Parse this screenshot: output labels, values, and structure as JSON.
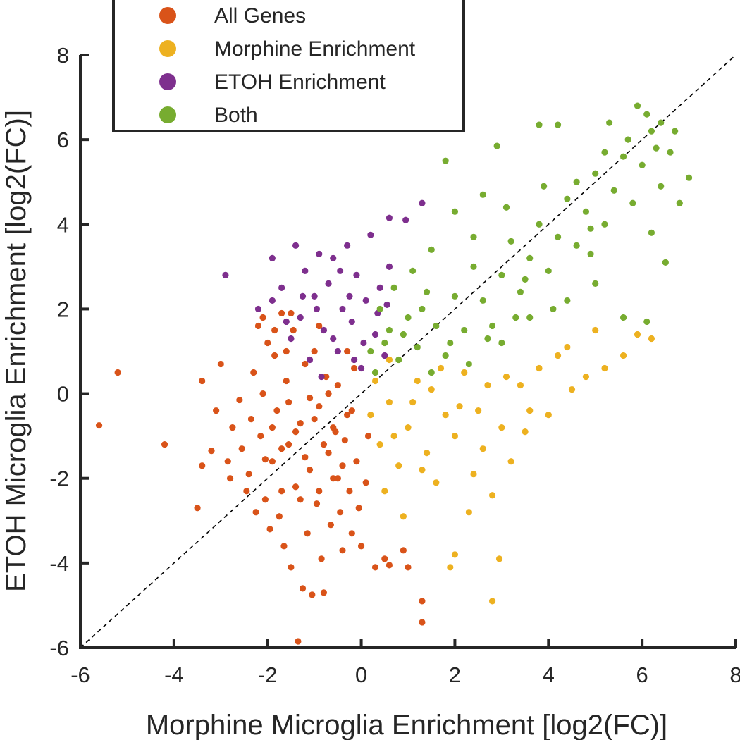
{
  "chart_data": {
    "type": "scatter",
    "xlabel": "Morphine Microglia Enrichment [log2(FC)]",
    "ylabel": "ETOH Microglia Enrichment [log2(FC)]",
    "xlim": [
      -6,
      8
    ],
    "ylim": [
      -6,
      8
    ],
    "xticks": [
      -6,
      -4,
      -2,
      0,
      2,
      4,
      6,
      8
    ],
    "yticks": [
      -6,
      -4,
      -2,
      0,
      2,
      4,
      6,
      8
    ],
    "x_tick_labels": [
      "-6",
      "-4",
      "-2",
      "0",
      "2",
      "4",
      "6",
      "8"
    ],
    "y_tick_labels": [
      "-6",
      "-4",
      "-2",
      "0",
      "2",
      "4",
      "6",
      "8"
    ],
    "grid": false,
    "legend_position": "top-left, outside axes (above)",
    "reference_line": {
      "type": "diagonal y = x",
      "style": "dashed",
      "color": "#000000"
    },
    "series": [
      {
        "name": "All Genes",
        "color": "#D95319",
        "values_description": "dense cloud centered near (-1, -1); x roughly -2 to 0, y roughly -3 to 2",
        "points": [
          [
            -5.6,
            -0.75
          ],
          [
            -5.2,
            0.5
          ],
          [
            -4.2,
            -1.2
          ],
          [
            -3.5,
            -2.7
          ],
          [
            -3.4,
            -1.7
          ],
          [
            -3.4,
            0.3
          ],
          [
            -3.2,
            -1.35
          ],
          [
            -3.1,
            -0.4
          ],
          [
            -3.0,
            0.7
          ],
          [
            -2.85,
            -1.6
          ],
          [
            -2.8,
            -2.0
          ],
          [
            -2.75,
            -0.8
          ],
          [
            -2.6,
            -0.15
          ],
          [
            -2.55,
            -1.3
          ],
          [
            -2.45,
            -2.3
          ],
          [
            -2.4,
            -1.9
          ],
          [
            -2.35,
            -0.6
          ],
          [
            -2.3,
            0.5
          ],
          [
            -2.25,
            -2.8
          ],
          [
            -2.2,
            1.6
          ],
          [
            -2.15,
            -1.0
          ],
          [
            -2.1,
            0.0
          ],
          [
            -2.05,
            -2.5
          ],
          [
            -2.0,
            1.2
          ],
          [
            -1.95,
            -3.2
          ],
          [
            -1.9,
            -1.6
          ],
          [
            -1.85,
            0.9
          ],
          [
            -1.8,
            -0.4
          ],
          [
            -1.75,
            -2.9
          ],
          [
            -1.7,
            1.9
          ],
          [
            -1.65,
            -3.6
          ],
          [
            -1.6,
            0.3
          ],
          [
            -1.55,
            -1.2
          ],
          [
            -1.5,
            -4.1
          ],
          [
            -1.45,
            1.5
          ],
          [
            -1.4,
            -2.2
          ],
          [
            -1.35,
            -5.85
          ],
          [
            -1.3,
            -0.7
          ],
          [
            -1.25,
            -4.6
          ],
          [
            -1.2,
            0.7
          ],
          [
            -1.15,
            -3.3
          ],
          [
            -1.1,
            -1.8
          ],
          [
            -1.05,
            -4.75
          ],
          [
            -1.0,
            1.0
          ],
          [
            -0.95,
            -2.6
          ],
          [
            -0.9,
            -0.3
          ],
          [
            -0.85,
            -3.9
          ],
          [
            -0.8,
            -4.7
          ],
          [
            -0.75,
            0.4
          ],
          [
            -0.7,
            -1.4
          ],
          [
            -0.65,
            -3.1
          ],
          [
            -0.6,
            -2.0
          ],
          [
            -0.55,
            -0.9
          ],
          [
            -0.5,
            0.2
          ],
          [
            -0.45,
            -2.8
          ],
          [
            -0.4,
            -3.7
          ],
          [
            -0.35,
            -1.1
          ],
          [
            -0.3,
            -0.5
          ],
          [
            -0.25,
            -2.3
          ],
          [
            -0.2,
            -3.3
          ],
          [
            -0.15,
            0.6
          ],
          [
            -0.1,
            -1.6
          ],
          [
            -0.05,
            -2.7
          ],
          [
            0.0,
            -3.6
          ],
          [
            0.1,
            -2.1
          ],
          [
            0.15,
            -1.0
          ],
          [
            0.3,
            -4.1
          ],
          [
            0.5,
            -3.9
          ],
          [
            0.6,
            -4.05
          ],
          [
            0.9,
            -3.7
          ],
          [
            1.0,
            -4.1
          ],
          [
            1.3,
            -4.9
          ],
          [
            1.3,
            -5.4
          ],
          [
            -2.05,
            -1.55
          ],
          [
            -1.7,
            -1.3
          ],
          [
            -1.4,
            -0.9
          ],
          [
            -1.2,
            -1.5
          ],
          [
            -1.0,
            -0.6
          ],
          [
            -0.8,
            -1.2
          ],
          [
            -0.6,
            -0.8
          ],
          [
            -0.4,
            -1.7
          ],
          [
            -0.2,
            -0.4
          ],
          [
            -1.55,
            -0.2
          ],
          [
            -1.3,
            -2.5
          ],
          [
            -0.9,
            -2.3
          ],
          [
            -0.5,
            -2.0
          ],
          [
            -1.9,
            -0.8
          ],
          [
            -1.7,
            -2.3
          ],
          [
            -1.1,
            -0.1
          ],
          [
            -0.7,
            0.0
          ],
          [
            -0.3,
            1.0
          ],
          [
            -1.6,
            1.0
          ],
          [
            -1.85,
            1.5
          ],
          [
            -2.1,
            1.8
          ],
          [
            -1.5,
            1.9
          ],
          [
            -0.9,
            1.6
          ]
        ]
      },
      {
        "name": "Morphine Enrichment",
        "color": "#EDB120",
        "values_description": "x > 0, y < ~1.5; fan extending to the lower right",
        "points": [
          [
            0.2,
            -0.5
          ],
          [
            0.4,
            -1.2
          ],
          [
            0.6,
            -0.2
          ],
          [
            0.8,
            -1.7
          ],
          [
            1.0,
            -0.8
          ],
          [
            1.2,
            0.3
          ],
          [
            1.4,
            -1.4
          ],
          [
            1.6,
            -2.1
          ],
          [
            1.8,
            -0.5
          ],
          [
            2.0,
            -1.0
          ],
          [
            2.2,
            0.5
          ],
          [
            2.4,
            -1.9
          ],
          [
            2.6,
            -1.3
          ],
          [
            2.8,
            -2.4
          ],
          [
            3.0,
            -0.8
          ],
          [
            3.2,
            -1.6
          ],
          [
            3.4,
            0.2
          ],
          [
            3.6,
            -0.4
          ],
          [
            3.8,
            0.6
          ],
          [
            4.0,
            -0.5
          ],
          [
            4.2,
            0.9
          ],
          [
            4.5,
            0.1
          ],
          [
            4.8,
            0.4
          ],
          [
            5.2,
            0.6
          ],
          [
            5.6,
            0.9
          ],
          [
            5.9,
            1.4
          ],
          [
            6.2,
            1.3
          ],
          [
            5.0,
            1.5
          ],
          [
            4.4,
            1.1
          ],
          [
            2.0,
            -3.8
          ],
          [
            1.9,
            -4.1
          ],
          [
            2.8,
            -4.9
          ],
          [
            2.95,
            -3.9
          ],
          [
            2.3,
            -2.8
          ],
          [
            0.5,
            -2.3
          ],
          [
            0.9,
            -2.9
          ],
          [
            0.3,
            0.3
          ],
          [
            0.6,
            0.8
          ],
          [
            1.1,
            -0.2
          ],
          [
            1.7,
            0.6
          ],
          [
            2.5,
            -0.4
          ],
          [
            3.1,
            0.4
          ],
          [
            3.5,
            -0.9
          ],
          [
            0.7,
            -1.0
          ],
          [
            1.3,
            -1.8
          ],
          [
            1.5,
            0.1
          ],
          [
            2.1,
            -0.3
          ],
          [
            2.7,
            0.2
          ]
        ]
      },
      {
        "name": "ETOH Enrichment",
        "color": "#7E2F8E",
        "values_description": "x < ~0.7, y > 0; cluster above All Genes cloud",
        "points": [
          [
            -2.9,
            2.8
          ],
          [
            -1.9,
            2.2
          ],
          [
            -1.7,
            2.5
          ],
          [
            -1.5,
            1.3
          ],
          [
            -1.4,
            3.5
          ],
          [
            -1.3,
            1.8
          ],
          [
            -1.2,
            2.9
          ],
          [
            -1.1,
            0.8
          ],
          [
            -1.0,
            2.3
          ],
          [
            -0.9,
            3.3
          ],
          [
            -0.8,
            1.5
          ],
          [
            -0.7,
            2.6
          ],
          [
            -0.6,
            3.2
          ],
          [
            -0.5,
            1.0
          ],
          [
            -0.4,
            2.0
          ],
          [
            -0.3,
            3.5
          ],
          [
            -0.2,
            1.7
          ],
          [
            -0.1,
            2.8
          ],
          [
            0.0,
            0.6
          ],
          [
            0.1,
            2.2
          ],
          [
            0.2,
            3.75
          ],
          [
            0.3,
            1.4
          ],
          [
            0.4,
            2.5
          ],
          [
            0.5,
            0.9
          ],
          [
            0.6,
            3.0
          ],
          [
            -1.9,
            3.2
          ],
          [
            -2.2,
            2.0
          ],
          [
            -0.95,
            2.0
          ],
          [
            -0.6,
            1.3
          ],
          [
            -0.25,
            2.3
          ],
          [
            0.05,
            1.2
          ],
          [
            0.35,
            1.9
          ],
          [
            -1.25,
            2.3
          ],
          [
            -0.45,
            2.9
          ],
          [
            0.55,
            2.1
          ],
          [
            1.3,
            4.5
          ],
          [
            0.95,
            4.1
          ],
          [
            0.6,
            4.15
          ],
          [
            -1.6,
            1.7
          ],
          [
            -0.85,
            0.4
          ],
          [
            -0.15,
            0.8
          ]
        ]
      },
      {
        "name": "Both",
        "color": "#77AC30",
        "values_description": "x > 0, y > 0; elongated cloud along y = x up to ~(6.5, 6.5)",
        "points": [
          [
            0.3,
            0.5
          ],
          [
            0.5,
            1.2
          ],
          [
            0.8,
            0.8
          ],
          [
            1.0,
            1.8
          ],
          [
            1.2,
            1.1
          ],
          [
            1.4,
            2.4
          ],
          [
            1.6,
            1.6
          ],
          [
            1.8,
            0.9
          ],
          [
            2.0,
            2.3
          ],
          [
            2.2,
            1.5
          ],
          [
            2.4,
            3.0
          ],
          [
            2.6,
            2.2
          ],
          [
            2.8,
            1.6
          ],
          [
            3.0,
            2.8
          ],
          [
            3.2,
            3.6
          ],
          [
            3.4,
            2.4
          ],
          [
            3.6,
            3.2
          ],
          [
            3.8,
            4.0
          ],
          [
            4.0,
            2.9
          ],
          [
            4.2,
            3.7
          ],
          [
            4.4,
            4.6
          ],
          [
            4.6,
            3.5
          ],
          [
            4.8,
            4.3
          ],
          [
            5.0,
            5.2
          ],
          [
            5.2,
            4.0
          ],
          [
            5.4,
            4.8
          ],
          [
            5.6,
            5.6
          ],
          [
            5.8,
            4.5
          ],
          [
            6.0,
            5.4
          ],
          [
            6.2,
            6.2
          ],
          [
            6.4,
            4.9
          ],
          [
            6.6,
            5.7
          ],
          [
            6.8,
            4.5
          ],
          [
            7.0,
            5.1
          ],
          [
            5.9,
            6.8
          ],
          [
            6.1,
            6.6
          ],
          [
            6.4,
            6.4
          ],
          [
            5.3,
            6.4
          ],
          [
            4.2,
            6.35
          ],
          [
            3.8,
            6.35
          ],
          [
            2.9,
            5.85
          ],
          [
            1.8,
            5.5
          ],
          [
            2.6,
            4.7
          ],
          [
            2.0,
            4.3
          ],
          [
            1.5,
            3.4
          ],
          [
            1.1,
            2.9
          ],
          [
            0.7,
            2.5
          ],
          [
            0.6,
            1.5
          ],
          [
            1.5,
            0.5
          ],
          [
            2.3,
            0.7
          ],
          [
            3.0,
            1.2
          ],
          [
            3.6,
            1.8
          ],
          [
            4.4,
            2.2
          ],
          [
            5.0,
            2.6
          ],
          [
            5.6,
            1.8
          ],
          [
            6.1,
            1.7
          ],
          [
            6.5,
            3.1
          ],
          [
            6.2,
            3.8
          ],
          [
            4.9,
            3.3
          ],
          [
            4.1,
            2.0
          ],
          [
            3.3,
            1.8
          ],
          [
            2.7,
            1.3
          ],
          [
            1.9,
            1.2
          ],
          [
            1.3,
            2.0
          ],
          [
            0.9,
            1.4
          ],
          [
            0.4,
            2.0
          ],
          [
            0.2,
            1.0
          ],
          [
            2.4,
            3.7
          ],
          [
            3.1,
            4.4
          ],
          [
            3.9,
            4.9
          ],
          [
            4.6,
            5.0
          ],
          [
            5.2,
            5.7
          ],
          [
            5.7,
            6.0
          ],
          [
            6.3,
            5.8
          ],
          [
            6.7,
            6.2
          ],
          [
            4.9,
            3.9
          ],
          [
            3.5,
            2.7
          ]
        ]
      }
    ]
  },
  "legend": {
    "items": [
      {
        "label": "All Genes",
        "color": "#D95319"
      },
      {
        "label": "Morphine Enrichment",
        "color": "#EDB120"
      },
      {
        "label": "ETOH Enrichment",
        "color": "#7E2F8E"
      },
      {
        "label": "Both",
        "color": "#77AC30"
      }
    ]
  }
}
